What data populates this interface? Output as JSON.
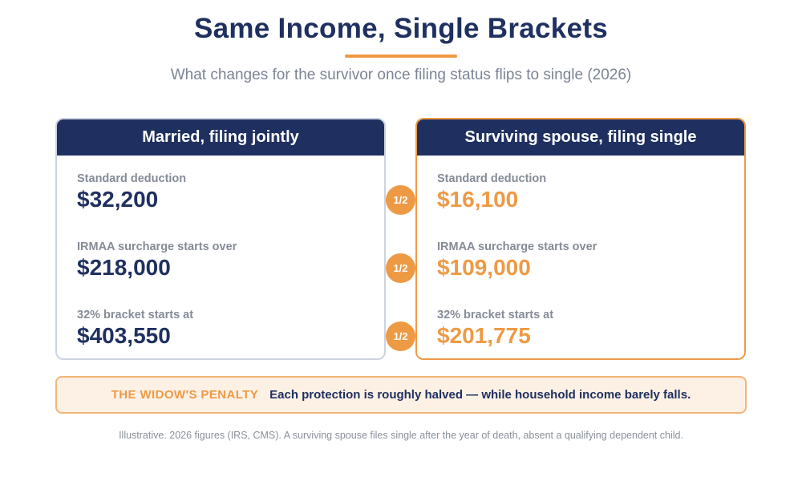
{
  "title": "Same Income, Single Brackets",
  "subtitle": "What changes for the survivor once filing status flips to single (2026)",
  "left_card": {
    "heading": "Married, filing jointly",
    "rows": [
      {
        "label": "Standard deduction",
        "value": "$32,200"
      },
      {
        "label": "IRMAA surcharge starts over",
        "value": "$218,000"
      },
      {
        "label": "32% bracket starts at",
        "value": "$403,550"
      }
    ]
  },
  "right_card": {
    "heading": "Surviving spouse, filing single",
    "rows": [
      {
        "label": "Standard deduction",
        "value": "$16,100"
      },
      {
        "label": "IRMAA surcharge starts over",
        "value": "$109,000"
      },
      {
        "label": "32% bracket starts at",
        "value": "$201,775"
      }
    ]
  },
  "badges": [
    "1/2",
    "1/2",
    "1/2"
  ],
  "penalty": {
    "tag": "THE WIDOW'S PENALTY",
    "text": "Each protection is roughly halved — while household income barely falls."
  },
  "footnote": "Illustrative. 2026 figures (IRS, CMS). A surviving spouse files single after the year of death, absent a qualifying dependent child.",
  "colors": {
    "navy": "#1f3060",
    "accent_orange": "#ee9a45",
    "penalty_bg": "#fdf1e5",
    "muted_text": "#858b97"
  }
}
